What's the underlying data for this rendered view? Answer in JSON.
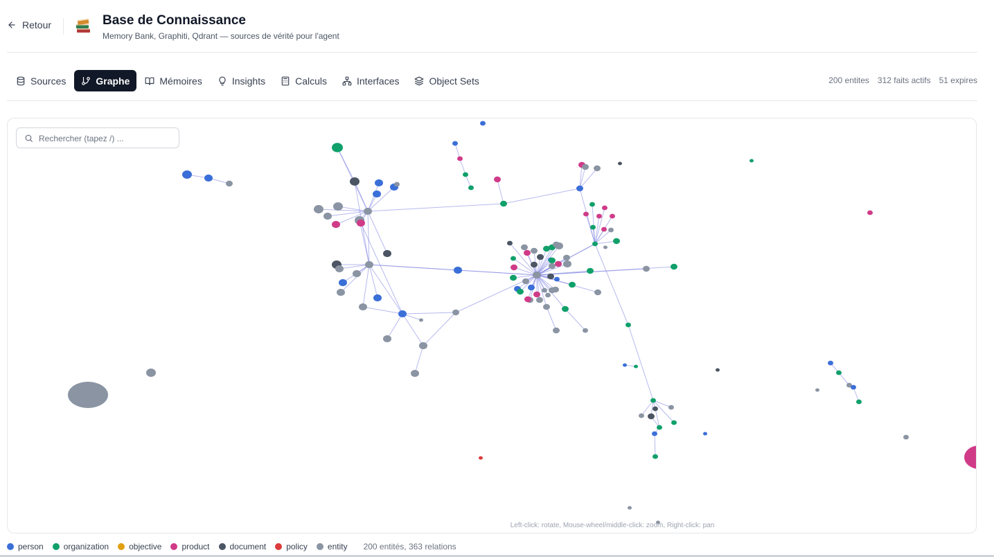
{
  "header": {
    "back_label": "Retour",
    "title": "Base de Connaissance",
    "subtitle": "Memory Bank, Graphiti, Qdrant — sources de vérité pour l'agent"
  },
  "tabs": [
    {
      "label": "Sources",
      "icon": "database-icon",
      "active": false
    },
    {
      "label": "Graphe",
      "icon": "git-branch-icon",
      "active": true
    },
    {
      "label": "Mémoires",
      "icon": "book-open-icon",
      "active": false
    },
    {
      "label": "Insights",
      "icon": "lightbulb-icon",
      "active": false
    },
    {
      "label": "Calculs",
      "icon": "calculator-icon",
      "active": false
    },
    {
      "label": "Interfaces",
      "icon": "network-icon",
      "active": false
    },
    {
      "label": "Object Sets",
      "icon": "layers-icon",
      "active": false
    }
  ],
  "stats": {
    "entities": "200 entites",
    "facts": "312 faits actifs",
    "expired": "51 expires"
  },
  "search": {
    "placeholder": "Rechercher (tapez /) ..."
  },
  "graph": {
    "hint": "Left-click: rotate, Mouse-wheel/middle-click: zoom, Right-click: pan",
    "colors": {
      "person": "#3b6fd8",
      "organization": "#10a06a",
      "objective": "#e0a012",
      "product": "#d03b88",
      "document": "#4b5563",
      "policy": "#dc3b3b",
      "entity": "#8a94a3",
      "link": "#7b7fe0"
    }
  },
  "legend": {
    "items": [
      {
        "label": "person",
        "color": "#3b6fd8"
      },
      {
        "label": "organization",
        "color": "#10a06a"
      },
      {
        "label": "objective",
        "color": "#e0a012"
      },
      {
        "label": "product",
        "color": "#d03b88"
      },
      {
        "label": "document",
        "color": "#4b5563"
      },
      {
        "label": "policy",
        "color": "#dc3b3b"
      },
      {
        "label": "entity",
        "color": "#8a94a3"
      }
    ],
    "count": "200 entités, 363 relations"
  }
}
